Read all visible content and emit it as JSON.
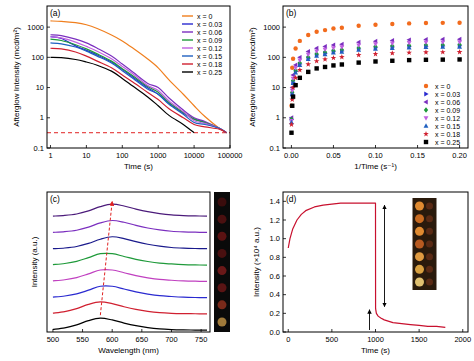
{
  "chart_data": [
    {
      "type": "line",
      "title": "(a)",
      "x_label": "Time (s)",
      "y_label": "Afterglow Intensity (mcd/m²)",
      "x": [
        1,
        2,
        5,
        10,
        20,
        50,
        100,
        200,
        500,
        1000,
        2000,
        5000,
        10000,
        20000,
        50000,
        80000
      ],
      "series": [
        {
          "name": "x = 0",
          "color": "#f07f1e",
          "values": [
            1600,
            1550,
            1400,
            1200,
            900,
            550,
            350,
            200,
            90,
            45,
            18,
            6,
            2.5,
            1.1,
            0.45,
            0.32
          ]
        },
        {
          "name": "x = 0.03",
          "color": "#2a2ad0",
          "values": [
            480,
            420,
            240,
            170,
            120,
            70,
            40,
            22,
            10,
            6,
            3,
            1.4,
            0.9,
            0.7,
            0.45,
            0.32
          ]
        },
        {
          "name": "x = 0.06",
          "color": "#7b2fbf",
          "values": [
            560,
            520,
            400,
            300,
            200,
            110,
            60,
            32,
            14,
            10,
            4.5,
            1.8,
            1.0,
            0.75,
            0.45,
            0.32
          ]
        },
        {
          "name": "x = 0.09",
          "color": "#1f9a3a",
          "values": [
            400,
            360,
            260,
            190,
            130,
            75,
            42,
            24,
            11,
            7,
            3.2,
            1.5,
            0.9,
            0.7,
            0.45,
            0.32
          ]
        },
        {
          "name": "x = 0.12",
          "color": "#c060e0",
          "values": [
            480,
            440,
            320,
            230,
            160,
            90,
            50,
            28,
            12,
            8,
            3.6,
            1.6,
            0.8,
            0.65,
            0.45,
            0.32
          ]
        },
        {
          "name": "x = 0.15",
          "color": "#2060c0",
          "values": [
            300,
            280,
            220,
            160,
            110,
            65,
            36,
            20,
            9,
            6,
            2.8,
            1.3,
            0.7,
            0.6,
            0.45,
            0.32
          ]
        },
        {
          "name": "x = 0.18",
          "color": "#d02030",
          "values": [
            200,
            190,
            150,
            110,
            75,
            45,
            26,
            15,
            7,
            4,
            2,
            1.0,
            0.6,
            0.5,
            0.42,
            0.32
          ]
        },
        {
          "name": "x = 0.25",
          "color": "#000000",
          "values": [
            100,
            98,
            85,
            70,
            55,
            35,
            20,
            11,
            5,
            2.5,
            1.2,
            0.6,
            0.32,
            null,
            null,
            null
          ]
        }
      ],
      "xlim": [
        0.8,
        100000
      ],
      "ylim": [
        0.1,
        5000
      ],
      "xticks": [
        1,
        10,
        100,
        1000,
        10000,
        100000
      ],
      "yticks": [
        0.1,
        1,
        10,
        100,
        1000
      ],
      "log": true,
      "legend": "upper right",
      "line_style": "smooth",
      "threshold": 0.32
    },
    {
      "type": "scatter",
      "title": "(b)",
      "x_label": "1/Time (s⁻¹)",
      "y_label": "Afterglow Intensity (mcd/m²)",
      "x": [
        0.0001,
        0.001,
        0.002,
        0.005,
        0.01,
        0.02,
        0.03,
        0.04,
        0.05,
        0.06,
        0.08,
        0.1,
        0.12,
        0.14,
        0.16,
        0.18,
        0.2
      ],
      "series": [
        {
          "name": "x = 0",
          "color": "#f26b1d",
          "marker": "circle",
          "values": [
            2.5,
            45,
            90,
            196,
            350,
            546,
            700,
            798,
            896,
            952,
            1106,
            1204,
            1274,
            1330,
            1372,
            1386,
            1400
          ]
        },
        {
          "name": "x = 0.03",
          "color": "#2a2ad0",
          "marker": "triangle-right",
          "values": [
            0.9,
            6,
            15,
            34,
            60,
            94,
            120,
            137,
            154,
            163,
            190,
            206,
            218,
            228,
            235,
            238,
            240
          ]
        },
        {
          "name": "x = 0.06",
          "color": "#7b2fbf",
          "marker": "triangle-left",
          "values": [
            1.0,
            10,
            26,
            56,
            100,
            156,
            200,
            228,
            256,
            272,
            316,
            344,
            364,
            380,
            392,
            396,
            400
          ]
        },
        {
          "name": "x = 0.09",
          "color": "#1f9a3a",
          "marker": "diamond",
          "values": [
            0.9,
            7,
            17,
            36,
            65,
            101,
            130,
            148,
            166,
            177,
            205,
            224,
            237,
            247,
            255,
            257,
            260
          ]
        },
        {
          "name": "x = 0.12",
          "color": "#c060e0",
          "marker": "triangle-down",
          "values": [
            0.8,
            8,
            20,
            45,
            80,
            125,
            160,
            182,
            205,
            218,
            253,
            275,
            291,
            304,
            314,
            317,
            320
          ]
        },
        {
          "name": "x = 0.15",
          "color": "#2060c0",
          "marker": "triangle-up",
          "values": [
            0.7,
            6,
            14,
            31,
            55,
            86,
            110,
            125,
            141,
            150,
            174,
            189,
            200,
            209,
            216,
            218,
            220
          ]
        },
        {
          "name": "x = 0.18",
          "color": "#d02030",
          "marker": "star",
          "values": [
            0.6,
            4,
            10,
            21,
            38,
            59,
            75,
            86,
            96,
            102,
            119,
            129,
            137,
            143,
            147,
            149,
            150
          ]
        },
        {
          "name": "x = 0.25",
          "color": "#000000",
          "marker": "square",
          "values": [
            0.32,
            2.5,
            5,
            12,
            21,
            33,
            43,
            48,
            54,
            58,
            67,
            73,
            77,
            81,
            83,
            84,
            85
          ]
        }
      ],
      "xlim": [
        -0.01,
        0.21
      ],
      "ylim": [
        0.1,
        5000
      ],
      "xticks": [
        {
          "value": 0,
          "label": "0.00"
        },
        {
          "value": 0.05,
          "label": "0.05"
        },
        {
          "value": 0.1,
          "label": "0.10"
        },
        {
          "value": 0.15,
          "label": "0.15"
        },
        {
          "value": 0.2,
          "label": "0.20"
        }
      ],
      "yticks": [
        0.1,
        1,
        10,
        100,
        1000
      ],
      "log": "y",
      "legend": "lower right"
    },
    {
      "type": "line",
      "title": "(c)",
      "x_label": "Wavelength (nm)",
      "y_label": "Intensity (a.u.)",
      "x": [
        500,
        520,
        540,
        560,
        580,
        600,
        620,
        640,
        660,
        680,
        700,
        720,
        740,
        760
      ],
      "series": [
        {
          "color": "#000000",
          "values": [
            0.16,
            0.25,
            0.44,
            0.7,
            0.85,
            0.74,
            0.55,
            0.39,
            0.27,
            0.19,
            0.15,
            0.13,
            0.12,
            0.11
          ]
        },
        {
          "color": "#d02030",
          "values": [
            1.16,
            1.25,
            1.44,
            1.7,
            1.85,
            1.74,
            1.55,
            1.39,
            1.27,
            1.19,
            1.15,
            1.13,
            1.12,
            1.11
          ]
        },
        {
          "color": "#2a2ad0",
          "values": [
            2.14,
            2.21,
            2.34,
            2.57,
            2.81,
            2.81,
            2.64,
            2.46,
            2.33,
            2.23,
            2.18,
            2.14,
            2.12,
            2.11
          ]
        },
        {
          "color": "#c040c0",
          "values": [
            3.14,
            3.21,
            3.34,
            3.57,
            3.81,
            3.81,
            3.64,
            3.46,
            3.33,
            3.23,
            3.18,
            3.14,
            3.12,
            3.11
          ]
        },
        {
          "color": "#1f9a3a",
          "values": [
            4.14,
            4.21,
            4.34,
            4.57,
            4.81,
            4.81,
            4.64,
            4.46,
            4.33,
            4.23,
            4.18,
            4.14,
            4.12,
            4.11
          ]
        },
        {
          "color": "#1a1a8c",
          "values": [
            5.12,
            5.16,
            5.25,
            5.44,
            5.7,
            5.85,
            5.74,
            5.55,
            5.39,
            5.27,
            5.19,
            5.15,
            5.13,
            5.12
          ]
        },
        {
          "color": "#7b2fbf",
          "values": [
            6.12,
            6.16,
            6.25,
            6.44,
            6.7,
            6.85,
            6.74,
            6.55,
            6.39,
            6.27,
            6.19,
            6.15,
            6.13,
            6.12
          ]
        },
        {
          "color": "#4b1a7a",
          "values": [
            7.12,
            7.16,
            7.25,
            7.44,
            7.7,
            7.85,
            7.74,
            7.55,
            7.39,
            7.27,
            7.19,
            7.15,
            7.13,
            7.12
          ]
        }
      ],
      "xlim": [
        490,
        765
      ],
      "ylim": [
        0,
        8.6
      ],
      "xticks": [
        500,
        550,
        600,
        650,
        700,
        750
      ],
      "tick_labels": "x",
      "line_style": "smooth"
    },
    {
      "type": "line",
      "title": "(d)",
      "x_label": "Time (s)",
      "y_label": "Intensity (×10⁴ a.u.)",
      "x": [
        0,
        20,
        50,
        100,
        150,
        200,
        300,
        400,
        500,
        600,
        700,
        800,
        900,
        1000,
        1001,
        1010,
        1030,
        1060,
        1100,
        1200,
        1300,
        1400,
        1500,
        1600,
        1700,
        1800
      ],
      "series": [
        {
          "color": "#c8102e",
          "values": [
            0.9,
            1.0,
            1.1,
            1.2,
            1.26,
            1.3,
            1.34,
            1.36,
            1.37,
            1.38,
            1.38,
            1.38,
            1.38,
            1.38,
            0.25,
            0.2,
            0.17,
            0.15,
            0.13,
            0.1,
            0.09,
            0.08,
            0.07,
            0.06,
            0.06,
            0.05
          ]
        }
      ],
      "xlim": [
        -60,
        2060
      ],
      "ylim": [
        0,
        1.5
      ],
      "xticks": [
        0,
        500,
        1000,
        1500,
        2000
      ],
      "yticks": [
        {
          "value": 0,
          "label": "0.0"
        },
        {
          "value": 0.2,
          "label": "0.2"
        },
        {
          "value": 0.4,
          "label": "0.4"
        },
        {
          "value": 0.6,
          "label": "0.6"
        },
        {
          "value": 0.8,
          "label": "0.8"
        },
        {
          "value": 1.0,
          "label": "1.0"
        },
        {
          "value": 1.2,
          "label": "1.2"
        },
        {
          "value": 1.4,
          "label": "1.4"
        }
      ]
    }
  ]
}
